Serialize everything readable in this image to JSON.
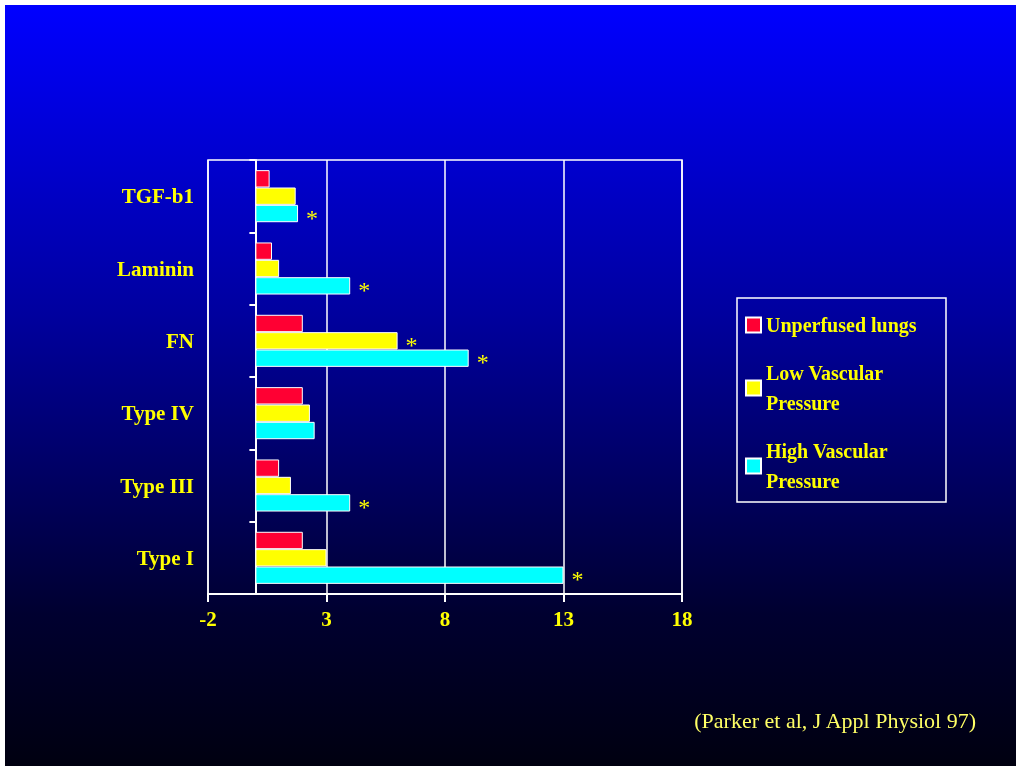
{
  "chart_data": {
    "type": "bar",
    "orientation": "horizontal",
    "categories": [
      "TGF-b1",
      "Laminin",
      "FN",
      "Type IV",
      "Type III",
      "Type I"
    ],
    "series": [
      {
        "name": "Unperfused lungs",
        "color": "#ff0033",
        "values": [
          0.6,
          0.7,
          2.0,
          2.0,
          1.0,
          2.0
        ]
      },
      {
        "name": "Low Vascular Pressure",
        "color": "#ffff00",
        "values": [
          1.7,
          1.0,
          6.0,
          2.3,
          1.5,
          3.0
        ],
        "value_labels": [
          null,
          null,
          "*",
          null,
          null,
          null
        ]
      },
      {
        "name": "High Vascular Pressure",
        "color": "#00ffff",
        "values": [
          1.8,
          4.0,
          9.0,
          2.5,
          4.0,
          13.0
        ],
        "value_labels": [
          "*",
          "*",
          "*",
          null,
          "*",
          "*"
        ]
      }
    ],
    "xlim": [
      -2,
      18
    ],
    "xticks": [
      -2,
      3,
      8,
      13,
      18
    ],
    "grid": "x",
    "legend": "right",
    "annotations": [
      "(Parker et al, J Appl Physiol 97)"
    ]
  }
}
